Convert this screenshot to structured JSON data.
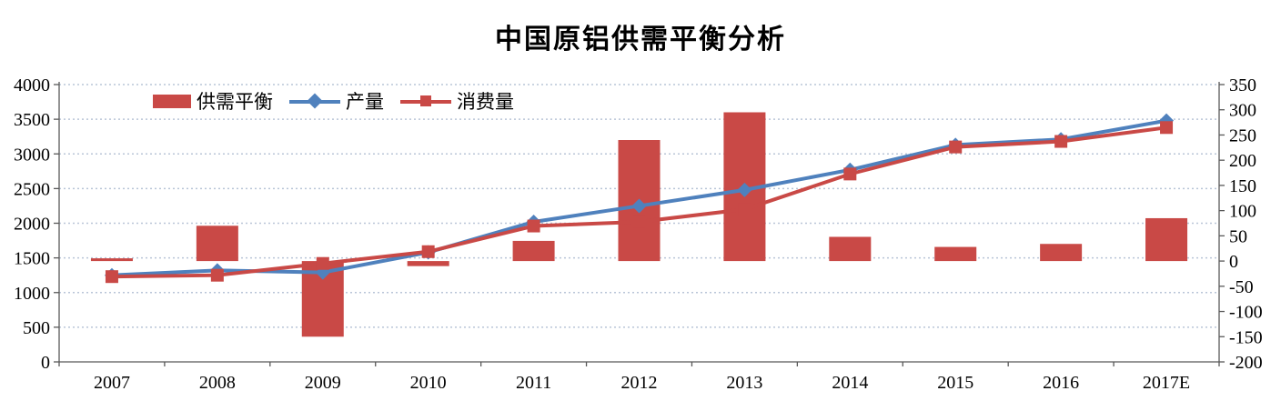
{
  "page": {
    "background": "#ffffff"
  },
  "chart_data": {
    "type": "combo-bar-line",
    "title": "中国原铝供需平衡分析",
    "categories": [
      "2007",
      "2008",
      "2009",
      "2010",
      "2011",
      "2012",
      "2013",
      "2014",
      "2015",
      "2016",
      "2017E"
    ],
    "series": [
      {
        "name": "供需平衡",
        "type": "bar",
        "axis": "right",
        "color": "#C94946",
        "values": [
          2,
          70,
          -150,
          -10,
          40,
          240,
          295,
          48,
          28,
          34,
          85
        ]
      },
      {
        "name": "产量",
        "type": "line",
        "marker": "diamond",
        "axis": "left",
        "color": "#4F81BD",
        "values": [
          1250,
          1320,
          1290,
          1580,
          2020,
          2250,
          2480,
          2770,
          3130,
          3210,
          3480
        ]
      },
      {
        "name": "消费量",
        "type": "line",
        "marker": "square",
        "axis": "left",
        "color": "#C94946",
        "values": [
          1230,
          1250,
          1420,
          1590,
          1960,
          2020,
          2200,
          2710,
          3100,
          3180,
          3380
        ]
      }
    ],
    "axes": {
      "left": {
        "min": 0,
        "max": 4000,
        "step": 500,
        "tick_labels": [
          "0",
          "500",
          "1000",
          "1500",
          "2000",
          "2500",
          "3000",
          "3500",
          "4000"
        ]
      },
      "right": {
        "min": -200,
        "max": 350,
        "step": 50,
        "tick_labels": [
          "-200",
          "-150",
          "-100",
          "-50",
          "0",
          "50",
          "100",
          "150",
          "200",
          "250",
          "300",
          "350"
        ]
      }
    },
    "grid": {
      "horizontal": "dotted",
      "color": "#b9c5d7",
      "at_left_axis_steps": true
    },
    "legend_position": "top-left-inside",
    "colors": {
      "bar": "#C94946",
      "line_production": "#4F81BD",
      "line_consumption": "#C94946",
      "axis": "#595959",
      "text": "#000000"
    }
  }
}
